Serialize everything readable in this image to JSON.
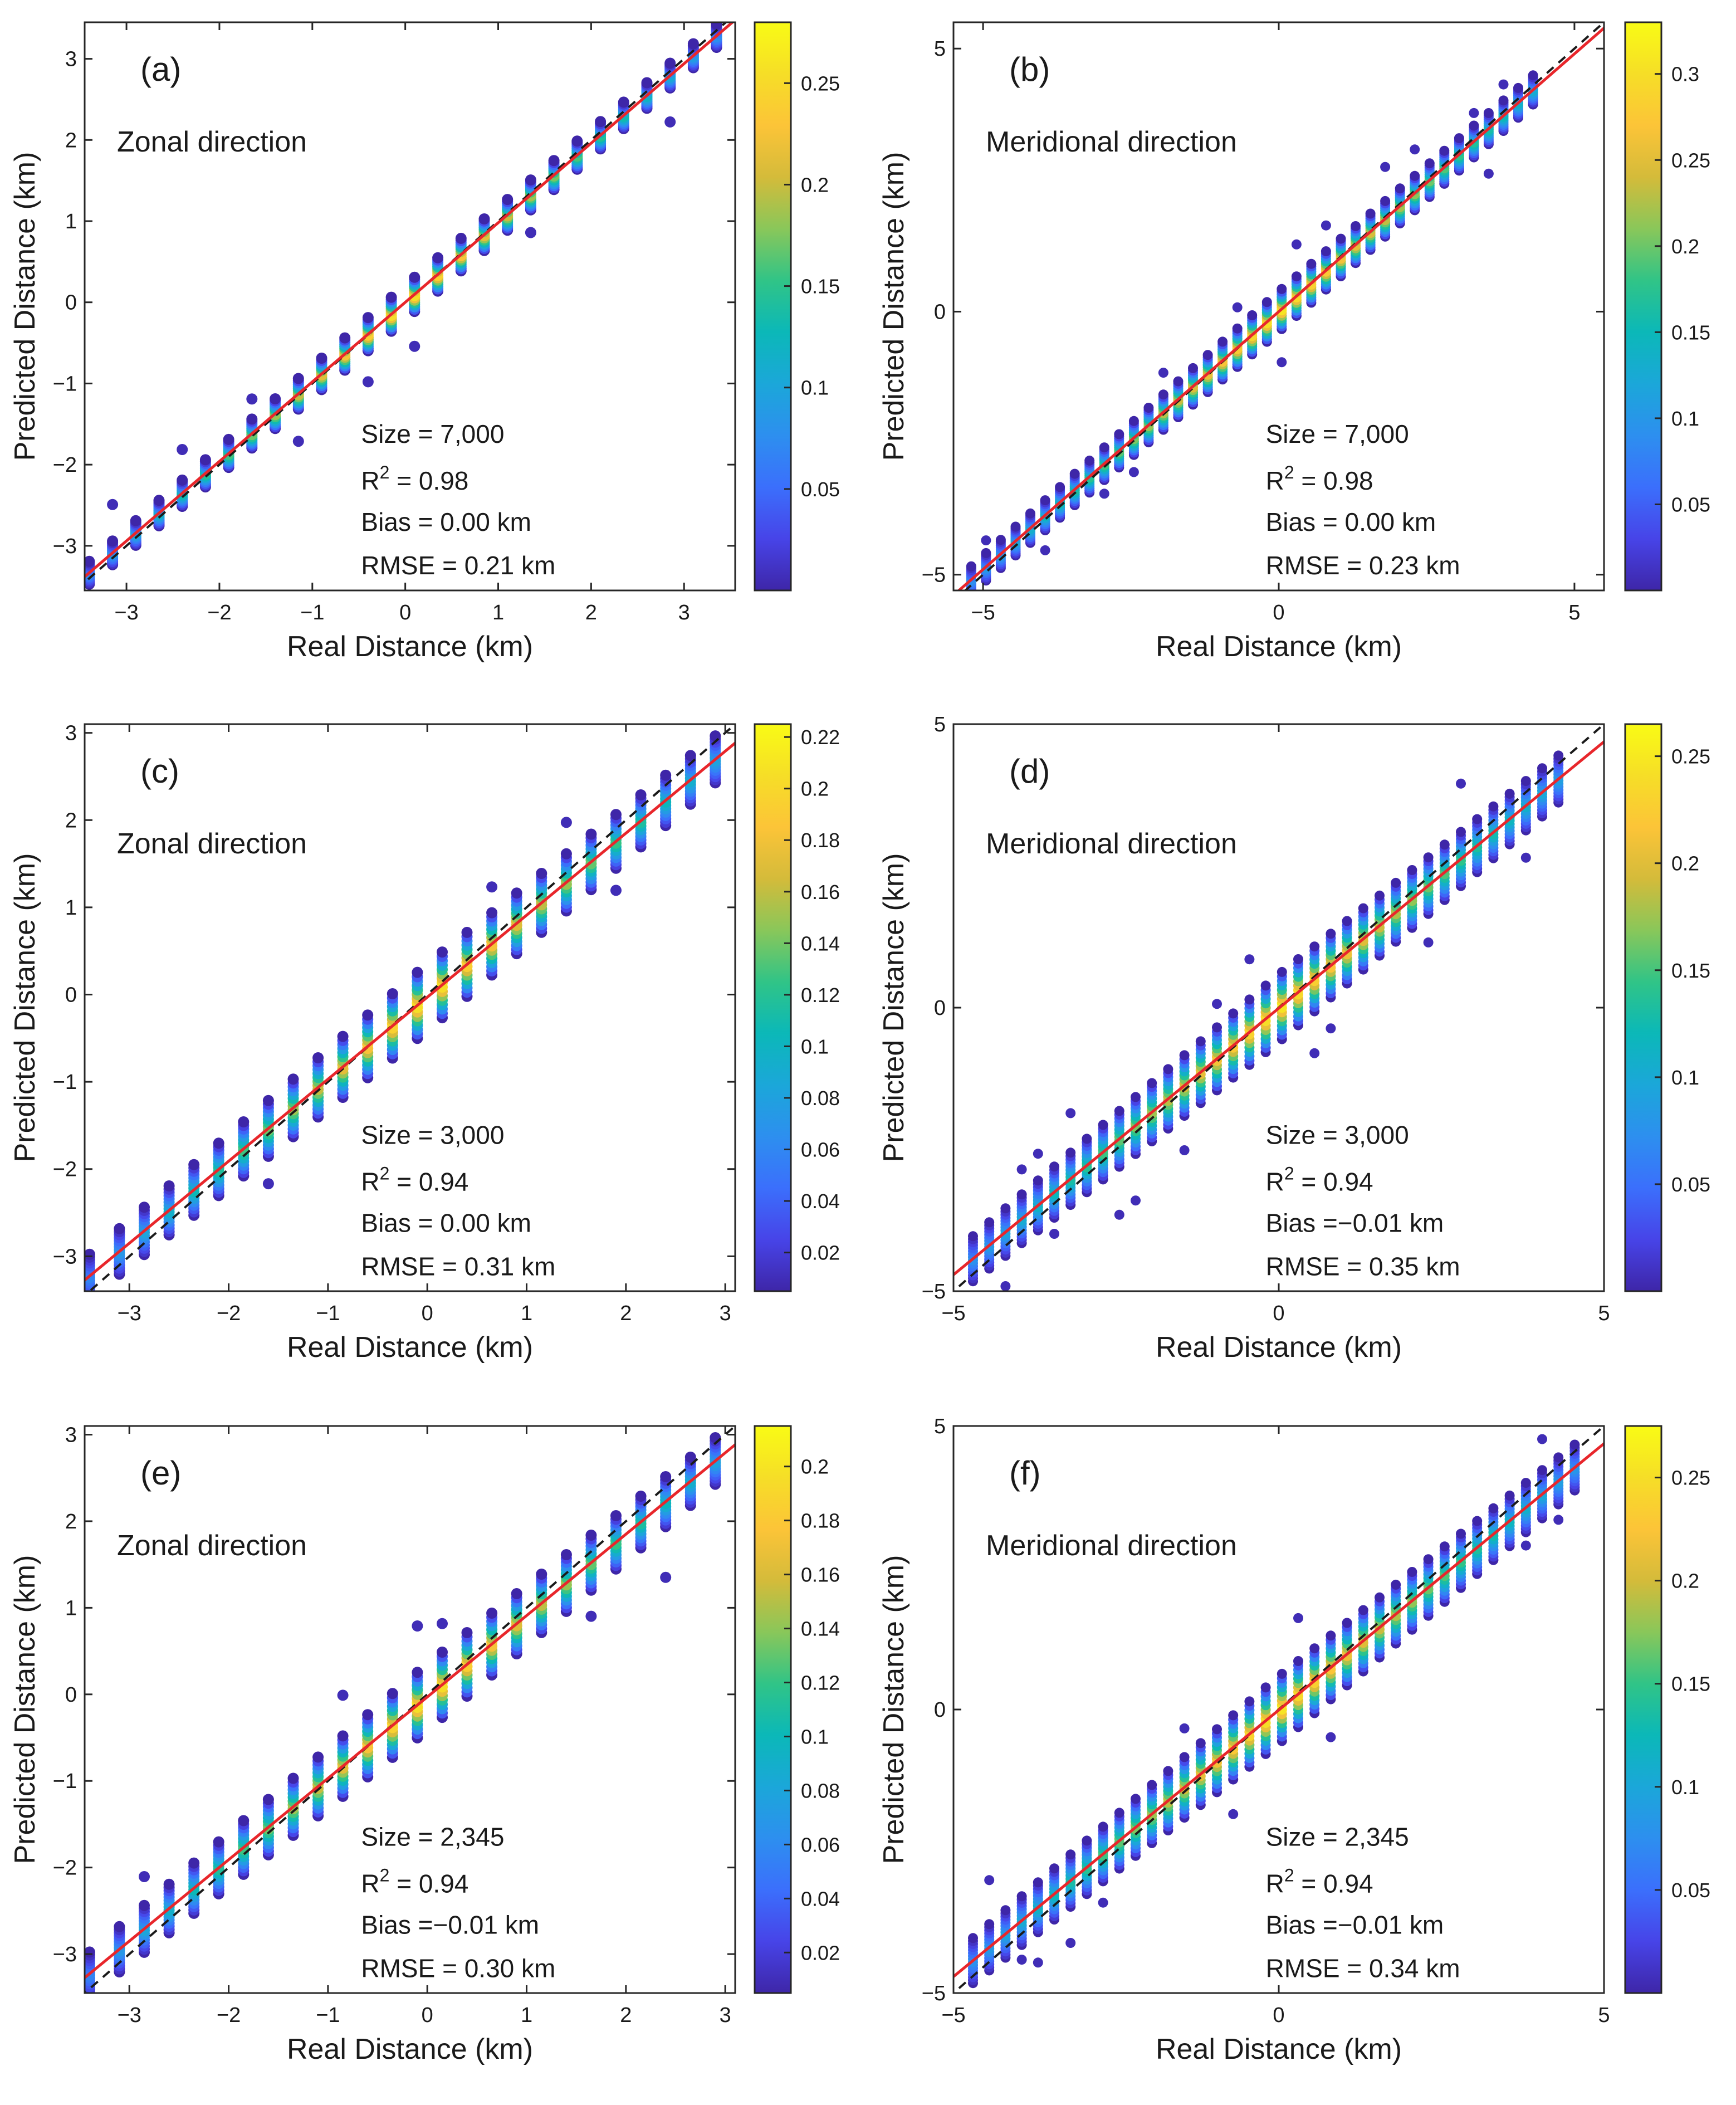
{
  "figure": {
    "description_note": "Six density-colored scatter plots of predicted vs real distance"
  },
  "chart_data": [
    {
      "type": "scatter",
      "panel_label": "(a)",
      "title": "Zonal direction",
      "xlabel": "Real Distance (km)",
      "ylabel": "Predicted Distance (km)",
      "xlim": [
        -3.45,
        3.55
      ],
      "ylim": [
        -3.55,
        3.45
      ],
      "xticks": [
        -3,
        -2,
        -1,
        0,
        1,
        2,
        3
      ],
      "yticks": [
        -3,
        -2,
        -1,
        0,
        1,
        2,
        3
      ],
      "xtick_labels": [
        "−3",
        "−2",
        "−1",
        "0",
        "1",
        "2",
        "3"
      ],
      "ytick_labels": [
        "−3",
        "−2",
        "−1",
        "0",
        "1",
        "2",
        "3"
      ],
      "x_columns": [
        -3.4,
        -3.15,
        -2.9,
        -2.65,
        -2.4,
        -2.15,
        -1.9,
        -1.65,
        -1.4,
        -1.15,
        -0.9,
        -0.65,
        -0.4,
        -0.15,
        0.1,
        0.35,
        0.6,
        0.85,
        1.1,
        1.35,
        1.6,
        1.85,
        2.1,
        2.35,
        2.6,
        2.85,
        3.1,
        3.35
      ],
      "spread": 0.25,
      "fit": {
        "slope": 0.98,
        "intercept": 0.0
      },
      "colorbar": {
        "min": 0.0,
        "max": 0.28,
        "ticks": [
          0.05,
          0.1,
          0.15,
          0.2,
          0.25
        ],
        "tick_labels": [
          "0.05",
          "0.1",
          "0.15",
          "0.2",
          "0.25"
        ]
      },
      "stats": {
        "size": "Size = 7,000",
        "r2_prefix": "R",
        "r2_value": " = 0.98",
        "bias": "Bias = 0.00 km",
        "rmse": "RMSE = 0.21 km"
      },
      "r2_sup": "2"
    },
    {
      "type": "scatter",
      "panel_label": "(b)",
      "title": "Meridional direction",
      "xlabel": "Real Distance (km)",
      "ylabel": "Predicted Distance (km)",
      "xlim": [
        -5.5,
        5.5
      ],
      "ylim": [
        -5.3,
        5.5
      ],
      "xticks": [
        -5,
        0,
        5
      ],
      "yticks": [
        -5,
        0,
        5
      ],
      "xtick_labels": [
        "−5",
        "0",
        "5"
      ],
      "ytick_labels": [
        "−5",
        "0",
        "5"
      ],
      "x_columns": [
        -5.2,
        -4.95,
        -4.7,
        -4.45,
        -4.2,
        -3.95,
        -3.7,
        -3.45,
        -3.2,
        -2.95,
        -2.7,
        -2.45,
        -2.2,
        -1.95,
        -1.7,
        -1.45,
        -1.2,
        -0.95,
        -0.7,
        -0.45,
        -0.2,
        0.05,
        0.3,
        0.55,
        0.8,
        1.05,
        1.3,
        1.55,
        1.8,
        2.05,
        2.3,
        2.55,
        2.8,
        3.05,
        3.3,
        3.55,
        3.8,
        4.05,
        4.3
      ],
      "spread": 0.45,
      "fit": {
        "slope": 0.98,
        "intercept": 0.0
      },
      "colorbar": {
        "min": 0.0,
        "max": 0.33,
        "ticks": [
          0.05,
          0.1,
          0.15,
          0.2,
          0.25,
          0.3
        ],
        "tick_labels": [
          "0.05",
          "0.1",
          "0.15",
          "0.2",
          "0.25",
          "0.3"
        ]
      },
      "stats": {
        "size": "Size = 7,000",
        "r2_prefix": "R",
        "r2_value": " = 0.98",
        "bias": "Bias = 0.00 km",
        "rmse": "RMSE = 0.23 km"
      },
      "r2_sup": "2"
    },
    {
      "type": "scatter",
      "panel_label": "(c)",
      "title": "Zonal direction",
      "xlabel": "Real Distance (km)",
      "ylabel": "Predicted Distance (km)",
      "xlim": [
        -3.45,
        3.1
      ],
      "ylim": [
        -3.4,
        3.1
      ],
      "xticks": [
        -3,
        -2,
        -1,
        0,
        1,
        2,
        3
      ],
      "yticks": [
        -3,
        -2,
        -1,
        0,
        1,
        2,
        3
      ],
      "xtick_labels": [
        "−3",
        "−2",
        "−1",
        "0",
        "1",
        "2",
        "3"
      ],
      "ytick_labels": [
        "−3",
        "−2",
        "−1",
        "0",
        "1",
        "2",
        "3"
      ],
      "x_columns": [
        -3.4,
        -3.1,
        -2.85,
        -2.6,
        -2.35,
        -2.1,
        -1.85,
        -1.6,
        -1.35,
        -1.1,
        -0.85,
        -0.6,
        -0.35,
        -0.1,
        0.15,
        0.4,
        0.65,
        0.9,
        1.15,
        1.4,
        1.65,
        1.9,
        2.15,
        2.4,
        2.65,
        2.9
      ],
      "spread": 0.45,
      "fit": {
        "slope": 0.94,
        "intercept": -0.03
      },
      "colorbar": {
        "min": 0.005,
        "max": 0.225,
        "ticks": [
          0.02,
          0.04,
          0.06,
          0.08,
          0.1,
          0.12,
          0.14,
          0.16,
          0.18,
          0.2,
          0.22
        ],
        "tick_labels": [
          "0.02",
          "0.04",
          "0.06",
          "0.08",
          "0.1",
          "0.12",
          "0.14",
          "0.16",
          "0.18",
          "0.2",
          "0.22"
        ]
      },
      "stats": {
        "size": "Size = 3,000",
        "r2_prefix": "R",
        "r2_value": " = 0.94",
        "bias": "Bias = 0.00 km",
        "rmse": "RMSE = 0.31 km"
      },
      "r2_sup": "2"
    },
    {
      "type": "scatter",
      "panel_label": "(d)",
      "title": "Meridional direction",
      "xlabel": "Real Distance (km)",
      "ylabel": "Predicted Distance (km)",
      "xlim": [
        -5.0,
        5.0
      ],
      "ylim": [
        -5.0,
        5.0
      ],
      "xticks": [
        -5,
        0,
        5
      ],
      "yticks": [
        -5,
        0,
        5
      ],
      "xtick_labels": [
        "−5",
        "0",
        "5"
      ],
      "ytick_labels": [
        "−5",
        "0",
        "5"
      ],
      "x_columns": [
        -4.7,
        -4.45,
        -4.2,
        -3.95,
        -3.7,
        -3.45,
        -3.2,
        -2.95,
        -2.7,
        -2.45,
        -2.2,
        -1.95,
        -1.7,
        -1.45,
        -1.2,
        -0.95,
        -0.7,
        -0.45,
        -0.2,
        0.05,
        0.3,
        0.55,
        0.8,
        1.05,
        1.3,
        1.55,
        1.8,
        2.05,
        2.3,
        2.55,
        2.8,
        3.05,
        3.3,
        3.55,
        3.8,
        4.05,
        4.3
      ],
      "spread": 0.7,
      "fit": {
        "slope": 0.94,
        "intercept": -0.01
      },
      "colorbar": {
        "min": 0.0,
        "max": 0.265,
        "ticks": [
          0.05,
          0.1,
          0.15,
          0.2,
          0.25
        ],
        "tick_labels": [
          "0.05",
          "0.1",
          "0.15",
          "0.2",
          "0.25"
        ]
      },
      "stats": {
        "size": "Size = 3,000",
        "r2_prefix": "R",
        "r2_value": " = 0.94",
        "bias": "Bias =−0.01 km",
        "rmse": "RMSE = 0.35 km"
      },
      "r2_sup": "2"
    },
    {
      "type": "scatter",
      "panel_label": "(e)",
      "title": "Zonal direction",
      "xlabel": "Real Distance (km)",
      "ylabel": "Predicted Distance (km)",
      "xlim": [
        -3.45,
        3.1
      ],
      "ylim": [
        -3.45,
        3.1
      ],
      "xticks": [
        -3,
        -2,
        -1,
        0,
        1,
        2,
        3
      ],
      "yticks": [
        -3,
        -2,
        -1,
        0,
        1,
        2,
        3
      ],
      "xtick_labels": [
        "−3",
        "−2",
        "−1",
        "0",
        "1",
        "2",
        "3"
      ],
      "ytick_labels": [
        "−3",
        "−2",
        "−1",
        "0",
        "1",
        "2",
        "3"
      ],
      "x_columns": [
        -3.4,
        -3.1,
        -2.85,
        -2.6,
        -2.35,
        -2.1,
        -1.85,
        -1.6,
        -1.35,
        -1.1,
        -0.85,
        -0.6,
        -0.35,
        -0.1,
        0.15,
        0.4,
        0.65,
        0.9,
        1.15,
        1.4,
        1.65,
        1.9,
        2.15,
        2.4,
        2.65,
        2.9
      ],
      "spread": 0.45,
      "fit": {
        "slope": 0.94,
        "intercept": -0.03
      },
      "colorbar": {
        "min": 0.005,
        "max": 0.215,
        "ticks": [
          0.02,
          0.04,
          0.06,
          0.08,
          0.1,
          0.12,
          0.14,
          0.16,
          0.18,
          0.2
        ],
        "tick_labels": [
          "0.02",
          "0.04",
          "0.06",
          "0.08",
          "0.1",
          "0.12",
          "0.14",
          "0.16",
          "0.18",
          "0.2"
        ]
      },
      "stats": {
        "size": "Size = 2,345",
        "r2_prefix": "R",
        "r2_value": " = 0.94",
        "bias": "Bias =−0.01 km",
        "rmse": "RMSE = 0.30 km"
      },
      "r2_sup": "2"
    },
    {
      "type": "scatter",
      "panel_label": "(f)",
      "title": "Meridional direction",
      "xlabel": "Real Distance (km)",
      "ylabel": "Predicted Distance (km)",
      "xlim": [
        -5.0,
        5.0
      ],
      "ylim": [
        -5.0,
        5.0
      ],
      "xticks": [
        -5,
        0,
        5
      ],
      "yticks": [
        -5,
        0,
        5
      ],
      "xtick_labels": [
        "−5",
        "0",
        "5"
      ],
      "ytick_labels": [
        "−5",
        "0",
        "5"
      ],
      "x_columns": [
        -4.7,
        -4.45,
        -4.2,
        -3.95,
        -3.7,
        -3.45,
        -3.2,
        -2.95,
        -2.7,
        -2.45,
        -2.2,
        -1.95,
        -1.7,
        -1.45,
        -1.2,
        -0.95,
        -0.7,
        -0.45,
        -0.2,
        0.05,
        0.3,
        0.55,
        0.8,
        1.05,
        1.3,
        1.55,
        1.8,
        2.05,
        2.3,
        2.55,
        2.8,
        3.05,
        3.3,
        3.55,
        3.8,
        4.05,
        4.3,
        4.55
      ],
      "spread": 0.7,
      "fit": {
        "slope": 0.94,
        "intercept": -0.01
      },
      "colorbar": {
        "min": 0.0,
        "max": 0.275,
        "ticks": [
          0.05,
          0.1,
          0.15,
          0.2,
          0.25
        ],
        "tick_labels": [
          "0.05",
          "0.1",
          "0.15",
          "0.2",
          "0.25"
        ]
      },
      "stats": {
        "size": "Size = 2,345",
        "r2_prefix": "R",
        "r2_value": " = 0.94",
        "bias": "Bias =−0.01 km",
        "rmse": "RMSE = 0.34 km"
      },
      "r2_sup": "2"
    }
  ],
  "colors": {
    "fit_line": "#e8262b",
    "identity_line": "#1a1a1a",
    "colormap": [
      "#3e26a8",
      "#4744e8",
      "#3b6ffc",
      "#2d8fef",
      "#1ba7d9",
      "#0bb8b8",
      "#30c487",
      "#89c75a",
      "#d4bb3a",
      "#fcc438",
      "#f6de27",
      "#f9fb15"
    ]
  }
}
